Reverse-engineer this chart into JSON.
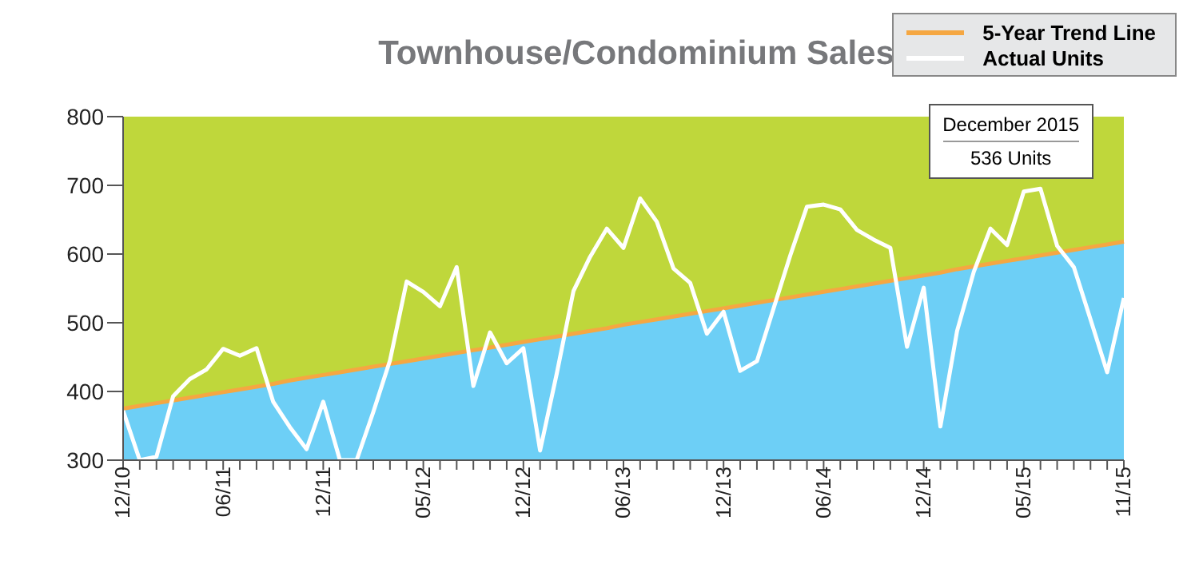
{
  "chart_data": {
    "type": "line",
    "title": "Townhouse/Condominium Sales",
    "categories": [
      "12/10",
      null,
      null,
      null,
      null,
      null,
      "06/11",
      null,
      null,
      null,
      null,
      null,
      "12/11",
      null,
      null,
      null,
      null,
      null,
      "05/12",
      null,
      null,
      null,
      null,
      null,
      "12/12",
      null,
      null,
      null,
      null,
      null,
      "06/13",
      null,
      null,
      null,
      null,
      null,
      "12/13",
      null,
      null,
      null,
      null,
      null,
      "06/14",
      null,
      null,
      null,
      null,
      null,
      "12/14",
      null,
      null,
      null,
      null,
      null,
      "05/15",
      null,
      null,
      null,
      null,
      null,
      "11/15"
    ],
    "series": [
      {
        "type": "area",
        "color": "#6dcff6",
        "values": [
          375,
          379,
          383,
          387,
          391,
          395,
          399,
          403,
          407,
          411,
          416,
          420,
          424,
          428,
          432,
          436,
          440,
          444,
          448,
          452,
          456,
          460,
          464,
          468,
          472,
          476,
          480,
          484,
          488,
          492,
          497,
          501,
          505,
          509,
          513,
          517,
          521,
          525,
          529,
          533,
          537,
          541,
          545,
          549,
          553,
          557,
          561,
          565,
          569,
          573,
          578,
          582,
          586,
          590,
          594,
          598,
          602,
          606,
          610,
          614,
          618
        ]
      },
      {
        "name": "5-Year Trend Line",
        "type": "line",
        "color": "#f5a742",
        "values": [
          375,
          379,
          383,
          387,
          391,
          395,
          399,
          403,
          407,
          411,
          416,
          420,
          424,
          428,
          432,
          436,
          440,
          444,
          448,
          452,
          456,
          460,
          464,
          468,
          472,
          476,
          480,
          484,
          488,
          492,
          497,
          501,
          505,
          509,
          513,
          517,
          521,
          525,
          529,
          533,
          537,
          541,
          545,
          549,
          553,
          557,
          561,
          565,
          569,
          573,
          578,
          582,
          586,
          590,
          594,
          598,
          602,
          606,
          610,
          614,
          618
        ]
      },
      {
        "name": "Actual Units",
        "color": "#ffffff",
        "values": [
          372,
          300,
          305,
          393,
          418,
          432,
          462,
          452,
          463,
          385,
          348,
          316,
          385,
          300,
          300,
          370,
          445,
          560,
          545,
          524,
          581,
          408,
          486,
          441,
          463,
          314,
          426,
          546,
          596,
          637,
          609,
          681,
          647,
          579,
          558,
          484,
          516,
          430,
          444,
          521,
          598,
          669,
          672,
          665,
          635,
          621,
          609,
          465,
          551,
          349,
          488,
          574,
          637,
          613,
          691,
          695,
          612,
          581,
          505,
          428,
          536
        ]
      }
    ],
    "ylim": [
      300,
      800
    ],
    "yticks": [
      300,
      400,
      500,
      600,
      700,
      800
    ],
    "grid": false,
    "legend": "top right",
    "marker": "none",
    "line_style": "solid",
    "annotations": [
      "December 2015",
      "536 Units"
    ]
  }
}
